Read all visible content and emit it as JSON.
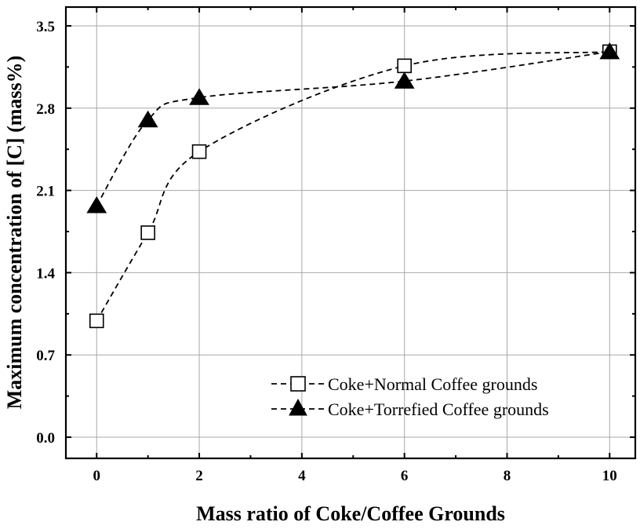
{
  "chart_data": {
    "type": "line",
    "title": "",
    "xlabel": "Mass ratio of Coke/Coffee Grounds",
    "ylabel": "Maximum concentration of [C] (mass%)",
    "xlim": [
      -0.6,
      10.5
    ],
    "ylim": [
      -0.18,
      3.66
    ],
    "x_ticks": [
      "0",
      "2",
      "4",
      "6",
      "8",
      "10"
    ],
    "x_tick_values": [
      0,
      2,
      4,
      6,
      8,
      10
    ],
    "y_ticks": [
      "0.0",
      "0.7",
      "1.4",
      "2.1",
      "2.8",
      "3.5"
    ],
    "y_tick_values": [
      0.0,
      0.7,
      1.4,
      2.1,
      2.8,
      3.5
    ],
    "grid": true,
    "legend_position": "bottom-right",
    "series": [
      {
        "name": "Coke+Normal Coffee grounds",
        "marker": "open-square",
        "line": "dashed",
        "x": [
          0,
          1,
          2,
          6,
          10
        ],
        "values": [
          0.99,
          1.74,
          2.43,
          3.16,
          3.28
        ]
      },
      {
        "name": "Coke+Torrefied Coffee grounds",
        "marker": "filled-triangle",
        "line": "dashed",
        "x": [
          0,
          1,
          2,
          6,
          10
        ],
        "values": [
          1.97,
          2.7,
          2.89,
          3.03,
          3.28
        ]
      }
    ]
  }
}
